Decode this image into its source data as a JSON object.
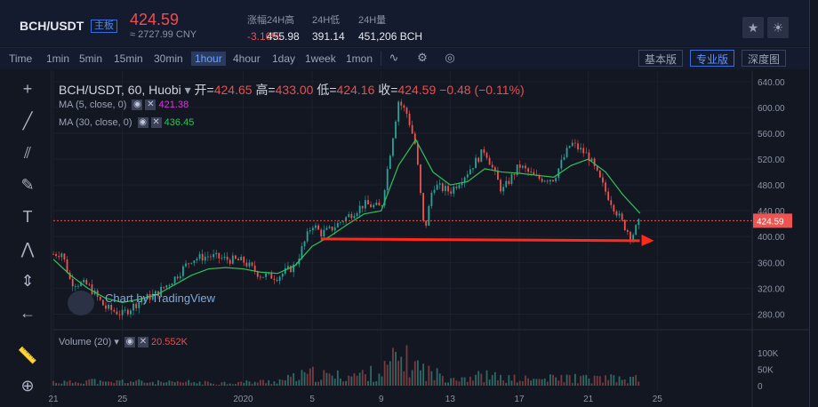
{
  "header": {
    "pair": "BCH/USDT",
    "badge": "主板",
    "last_price": "424.59",
    "cny_value": "≈ 2727.99 CNY",
    "stats": [
      {
        "label": "涨幅",
        "value": "-3.16%"
      },
      {
        "label": "24H高",
        "value": "455.98"
      },
      {
        "label": "24H低",
        "value": "391.14"
      },
      {
        "label": "24H量",
        "value": "451,206 BCH"
      }
    ]
  },
  "toolbar": {
    "timeframes": [
      "Time",
      "1min",
      "5min",
      "15min",
      "30min",
      "1hour",
      "4hour",
      "1day",
      "1week",
      "1mon"
    ],
    "active_timeframe": "1hour",
    "modes": [
      "基本版",
      "专业版",
      "深度图"
    ],
    "active_mode": "专业版"
  },
  "legend": {
    "symbol": "BCH/USDT, 60, Huobi",
    "open_label": "开=",
    "open": "424.65",
    "high_label": "高=",
    "high": "433.00",
    "low_label": "低=",
    "low": "424.16",
    "close_label": "收=",
    "close": "424.59",
    "change": "−0.48 (−0.11%)",
    "ma5_label": "MA (5, close, 0)",
    "ma5_value": "421.38",
    "ma30_label": "MA (30, close, 0)",
    "ma30_value": "436.45",
    "volume_label": "Volume (20)",
    "volume_value": "20.552K"
  },
  "watermark": "Chart by TradingView",
  "colors": {
    "up": "#26a69a",
    "down": "#ef5350",
    "ma5": "#d63ad6",
    "ma30": "#2fc15b",
    "accent": "#f04c4c"
  },
  "chart_data": {
    "type": "line",
    "price_axis_ticks": [
      "640.00",
      "600.00",
      "560.00",
      "520.00",
      "480.00",
      "440.00",
      "400.00",
      "360.00",
      "320.00",
      "280.00"
    ],
    "price_ylim": [
      260,
      648
    ],
    "last_price_label": "424.59",
    "volume_axis_ticks": [
      "100K",
      "50K",
      "0"
    ],
    "volume_ylim": [
      0,
      125
    ],
    "x_tick_labels": [
      "21",
      "25",
      "2020",
      "5",
      "9",
      "13",
      "17",
      "21",
      "25"
    ],
    "x_ticks_day_index": [
      0,
      4,
      11,
      15,
      19,
      23,
      27,
      31,
      35
    ],
    "close_series_by_day": [
      [
        0,
        373
      ],
      [
        0.5,
        375
      ],
      [
        1,
        330
      ],
      [
        2,
        325
      ],
      [
        3,
        290
      ],
      [
        4,
        280
      ],
      [
        5,
        300
      ],
      [
        6,
        312
      ],
      [
        7,
        335
      ],
      [
        8,
        365
      ],
      [
        9,
        370
      ],
      [
        10,
        365
      ],
      [
        11,
        362
      ],
      [
        12,
        340
      ],
      [
        13,
        338
      ],
      [
        14,
        355
      ],
      [
        15,
        420
      ],
      [
        15.5,
        405
      ],
      [
        16,
        410
      ],
      [
        17,
        430
      ],
      [
        18,
        450
      ],
      [
        19,
        445
      ],
      [
        20,
        610
      ],
      [
        20.5,
        590
      ],
      [
        21,
        540
      ],
      [
        21.5,
        405
      ],
      [
        22,
        480
      ],
      [
        23,
        470
      ],
      [
        24,
        500
      ],
      [
        25,
        535
      ],
      [
        26,
        470
      ],
      [
        27,
        510
      ],
      [
        28,
        490
      ],
      [
        29,
        490
      ],
      [
        30,
        545
      ],
      [
        31,
        525
      ],
      [
        32,
        470
      ],
      [
        33,
        420
      ],
      [
        33.5,
        400
      ],
      [
        34,
        424.59
      ]
    ],
    "ma30_series_by_day": [
      [
        0,
        365
      ],
      [
        1,
        340
      ],
      [
        2,
        320
      ],
      [
        3,
        305
      ],
      [
        4,
        298
      ],
      [
        5,
        303
      ],
      [
        6,
        310
      ],
      [
        7,
        325
      ],
      [
        8,
        340
      ],
      [
        9,
        350
      ],
      [
        10,
        352
      ],
      [
        11,
        350
      ],
      [
        12,
        345
      ],
      [
        13,
        343
      ],
      [
        14,
        355
      ],
      [
        15,
        385
      ],
      [
        16,
        400
      ],
      [
        17,
        418
      ],
      [
        18,
        435
      ],
      [
        19,
        440
      ],
      [
        20,
        510
      ],
      [
        21,
        550
      ],
      [
        22,
        500
      ],
      [
        23,
        480
      ],
      [
        24,
        485
      ],
      [
        25,
        505
      ],
      [
        26,
        500
      ],
      [
        27,
        498
      ],
      [
        28,
        495
      ],
      [
        29,
        492
      ],
      [
        30,
        510
      ],
      [
        31,
        520
      ],
      [
        32,
        500
      ],
      [
        33,
        465
      ],
      [
        34,
        436
      ]
    ],
    "support_arrow": {
      "from_day": 15.5,
      "to_day": 34.5,
      "price": 395
    },
    "volume_by_day": [
      [
        0,
        12
      ],
      [
        1,
        10
      ],
      [
        2,
        18
      ],
      [
        3,
        8
      ],
      [
        4,
        14
      ],
      [
        5,
        12
      ],
      [
        6,
        10
      ],
      [
        7,
        9
      ],
      [
        8,
        11
      ],
      [
        9,
        8
      ],
      [
        10,
        9
      ],
      [
        11,
        10
      ],
      [
        12,
        12
      ],
      [
        13,
        14
      ],
      [
        14,
        25
      ],
      [
        15,
        35
      ],
      [
        16,
        28
      ],
      [
        17,
        30
      ],
      [
        18,
        34
      ],
      [
        19,
        40
      ],
      [
        20,
        85
      ],
      [
        21,
        60
      ],
      [
        22,
        35
      ],
      [
        23,
        28
      ],
      [
        24,
        26
      ],
      [
        25,
        30
      ],
      [
        26,
        22
      ],
      [
        27,
        20
      ],
      [
        28,
        18
      ],
      [
        29,
        22
      ],
      [
        30,
        24
      ],
      [
        31,
        20
      ],
      [
        32,
        22
      ],
      [
        33,
        18
      ],
      [
        34,
        21
      ]
    ]
  }
}
